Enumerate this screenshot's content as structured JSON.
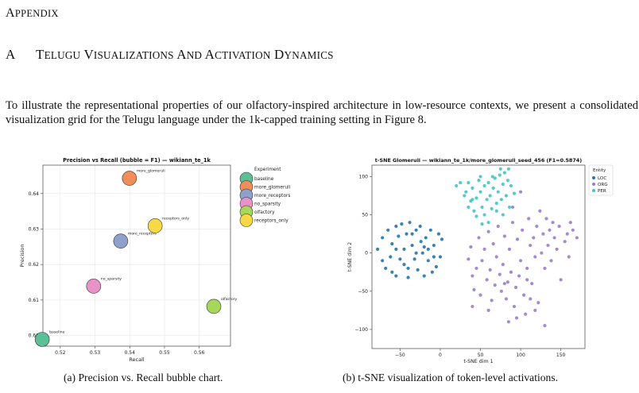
{
  "header": {
    "appendix": "Appendix",
    "section_number": "A",
    "section_title": "Telugu Visualizations and Activation Dynamics"
  },
  "paragraph": "To illustrate the representational properties of our olfactory-inspired architecture in low-resource contexts, we present a consolidated visualization grid for the Telugu language under the 1k-capped training setting in Figure 8.",
  "captions": {
    "a": "(a) Precision vs. Recall bubble chart.",
    "b": "(b) t-SNE visualization of token-level activations."
  },
  "chart_data": [
    {
      "type": "scatter",
      "title": "Precision vs Recall (bubble = F1) — wikiann_te_1k",
      "xlabel": "Recall",
      "ylabel": "Precision",
      "xlim": [
        0.515,
        0.569
      ],
      "ylim": [
        0.597,
        0.648
      ],
      "xticks": [
        0.52,
        0.53,
        0.54,
        0.55,
        0.56
      ],
      "xtick_labels": [
        "0.52",
        "0.53",
        "0.54",
        "0.55",
        "0.56"
      ],
      "yticks": [
        0.6,
        0.61,
        0.62,
        0.63,
        0.64
      ],
      "ytick_labels": [
        "0.60",
        "0.61",
        "0.62",
        "0.63",
        "0.64"
      ],
      "grid": true,
      "legend_title": "Experiment",
      "legend_position": "right",
      "points": [
        {
          "name": "baseline",
          "recall": 0.5148,
          "precision": 0.5989,
          "color": "#5dbf95"
        },
        {
          "name": "more_glomeruli",
          "recall": 0.5399,
          "precision": 0.6443,
          "color": "#ef8d5b"
        },
        {
          "name": "more_receptors",
          "recall": 0.5374,
          "precision": 0.6266,
          "color": "#8fa0cc"
        },
        {
          "name": "no_sparsity",
          "recall": 0.5296,
          "precision": 0.6139,
          "color": "#e992c8"
        },
        {
          "name": "olfactory",
          "recall": 0.5642,
          "precision": 0.6082,
          "color": "#a6d65a"
        },
        {
          "name": "receptors_only",
          "recall": 0.5473,
          "precision": 0.6309,
          "color": "#f7d948"
        }
      ]
    },
    {
      "type": "scatter",
      "title": "t-SNE Glomeruli — wikiann_te_1k/more_glomeruli_seed_456 (F1=0.5874)",
      "xlabel": "t-SNE dim 1",
      "ylabel": "t-SNE dim 2",
      "xlim": [
        -85,
        180
      ],
      "ylim": [
        -125,
        115
      ],
      "xticks": [
        -50,
        0,
        50,
        100,
        150
      ],
      "xtick_labels": [
        "−50",
        "0",
        "50",
        "100",
        "150"
      ],
      "yticks": [
        -100,
        -50,
        0,
        50,
        100
      ],
      "ytick_labels": [
        "−100",
        "−50",
        "0",
        "50",
        "100"
      ],
      "grid": false,
      "legend_title": "Entity",
      "legend_position": "top-right",
      "series": [
        {
          "name": "LOC",
          "color": "#2874a6",
          "points": [
            [
              -78,
              5
            ],
            [
              -72,
              20
            ],
            [
              -72,
              -10
            ],
            [
              -68,
              -20
            ],
            [
              -65,
              30
            ],
            [
              -60,
              12
            ],
            [
              -60,
              -25
            ],
            [
              -55,
              35
            ],
            [
              -52,
              22
            ],
            [
              -55,
              -30
            ],
            [
              -48,
              38
            ],
            [
              -45,
              5
            ],
            [
              -45,
              -15
            ],
            [
              -42,
              25
            ],
            [
              -40,
              -32
            ],
            [
              -38,
              40
            ],
            [
              -35,
              10
            ],
            [
              -32,
              -8
            ],
            [
              -30,
              30
            ],
            [
              -28,
              -22
            ],
            [
              -25,
              35
            ],
            [
              -22,
              0
            ],
            [
              -20,
              -30
            ],
            [
              -18,
              20
            ],
            [
              -15,
              -10
            ],
            [
              -12,
              30
            ],
            [
              -10,
              -25
            ],
            [
              -8,
              10
            ],
            [
              -5,
              -18
            ],
            [
              -2,
              25
            ],
            [
              0,
              -5
            ],
            [
              2,
              18
            ],
            [
              -20,
              8
            ],
            [
              -30,
              0
            ],
            [
              -40,
              -20
            ],
            [
              -62,
              -5
            ],
            [
              -50,
              -8
            ],
            [
              -35,
              25
            ],
            [
              -15,
              5
            ],
            [
              -8,
              -5
            ],
            [
              -55,
              5
            ],
            [
              -24,
              15
            ]
          ]
        },
        {
          "name": "ORG",
          "color": "#9b7dc7",
          "points": [
            [
              35,
              -8
            ],
            [
              38,
              8
            ],
            [
              40,
              -30
            ],
            [
              42,
              -48
            ],
            [
              45,
              -20
            ],
            [
              48,
              20
            ],
            [
              50,
              -55
            ],
            [
              52,
              -10
            ],
            [
              55,
              5
            ],
            [
              58,
              -35
            ],
            [
              60,
              28
            ],
            [
              62,
              -22
            ],
            [
              64,
              -62
            ],
            [
              66,
              12
            ],
            [
              68,
              -42
            ],
            [
              70,
              -5
            ],
            [
              72,
              35
            ],
            [
              74,
              -28
            ],
            [
              76,
              -50
            ],
            [
              78,
              -15
            ],
            [
              80,
              22
            ],
            [
              82,
              -60
            ],
            [
              84,
              -38
            ],
            [
              86,
              5
            ],
            [
              88,
              -25
            ],
            [
              90,
              40
            ],
            [
              92,
              -70
            ],
            [
              94,
              -45
            ],
            [
              96,
              18
            ],
            [
              98,
              -30
            ],
            [
              100,
              -10
            ],
            [
              102,
              30
            ],
            [
              104,
              -55
            ],
            [
              106,
              -80
            ],
            [
              108,
              -20
            ],
            [
              110,
              45
            ],
            [
              112,
              10
            ],
            [
              114,
              -40
            ],
            [
              116,
              20
            ],
            [
              118,
              -5
            ],
            [
              120,
              35
            ],
            [
              122,
              -65
            ],
            [
              124,
              55
            ],
            [
              126,
              0
            ],
            [
              128,
              25
            ],
            [
              130,
              -20
            ],
            [
              132,
              45
            ],
            [
              134,
              10
            ],
            [
              136,
              30
            ],
            [
              138,
              -10
            ],
            [
              140,
              40
            ],
            [
              142,
              20
            ],
            [
              145,
              5
            ],
            [
              148,
              35
            ],
            [
              150,
              -35
            ],
            [
              155,
              15
            ],
            [
              158,
              25
            ],
            [
              160,
              -5
            ],
            [
              162,
              40
            ],
            [
              165,
              30
            ],
            [
              170,
              20
            ],
            [
              100,
              80
            ],
            [
              90,
              60
            ],
            [
              85,
              -90
            ],
            [
              112,
              -60
            ],
            [
              130,
              -95
            ],
            [
              40,
              -70
            ],
            [
              60,
              -75
            ],
            [
              95,
              -85
            ],
            [
              118,
              -75
            ],
            [
              108,
              -35
            ],
            [
              80,
              -40
            ]
          ]
        },
        {
          "name": "PER",
          "color": "#3fc6c2",
          "points": [
            [
              20,
              88
            ],
            [
              25,
              92
            ],
            [
              30,
              75
            ],
            [
              32,
              80
            ],
            [
              35,
              92
            ],
            [
              38,
              68
            ],
            [
              40,
              85
            ],
            [
              42,
              55
            ],
            [
              45,
              72
            ],
            [
              48,
              95
            ],
            [
              50,
              80
            ],
            [
              52,
              60
            ],
            [
              55,
              88
            ],
            [
              58,
              70
            ],
            [
              60,
              92
            ],
            [
              62,
              75
            ],
            [
              64,
              58
            ],
            [
              66,
              85
            ],
            [
              68,
              98
            ],
            [
              70,
              65
            ],
            [
              72,
              80
            ],
            [
              74,
              102
            ],
            [
              76,
              70
            ],
            [
              78,
              90
            ],
            [
              80,
              105
            ],
            [
              82,
              75
            ],
            [
              84,
              95
            ],
            [
              86,
              60
            ],
            [
              88,
              88
            ],
            [
              92,
              78
            ],
            [
              65,
              100
            ],
            [
              55,
              50
            ],
            [
              35,
              60
            ],
            [
              45,
              48
            ],
            [
              70,
              55
            ],
            [
              60,
              40
            ],
            [
              40,
              70
            ],
            [
              75,
              110
            ],
            [
              85,
              110
            ],
            [
              50,
              100
            ],
            [
              78,
              50
            ],
            [
              52,
              38
            ]
          ]
        }
      ]
    }
  ]
}
